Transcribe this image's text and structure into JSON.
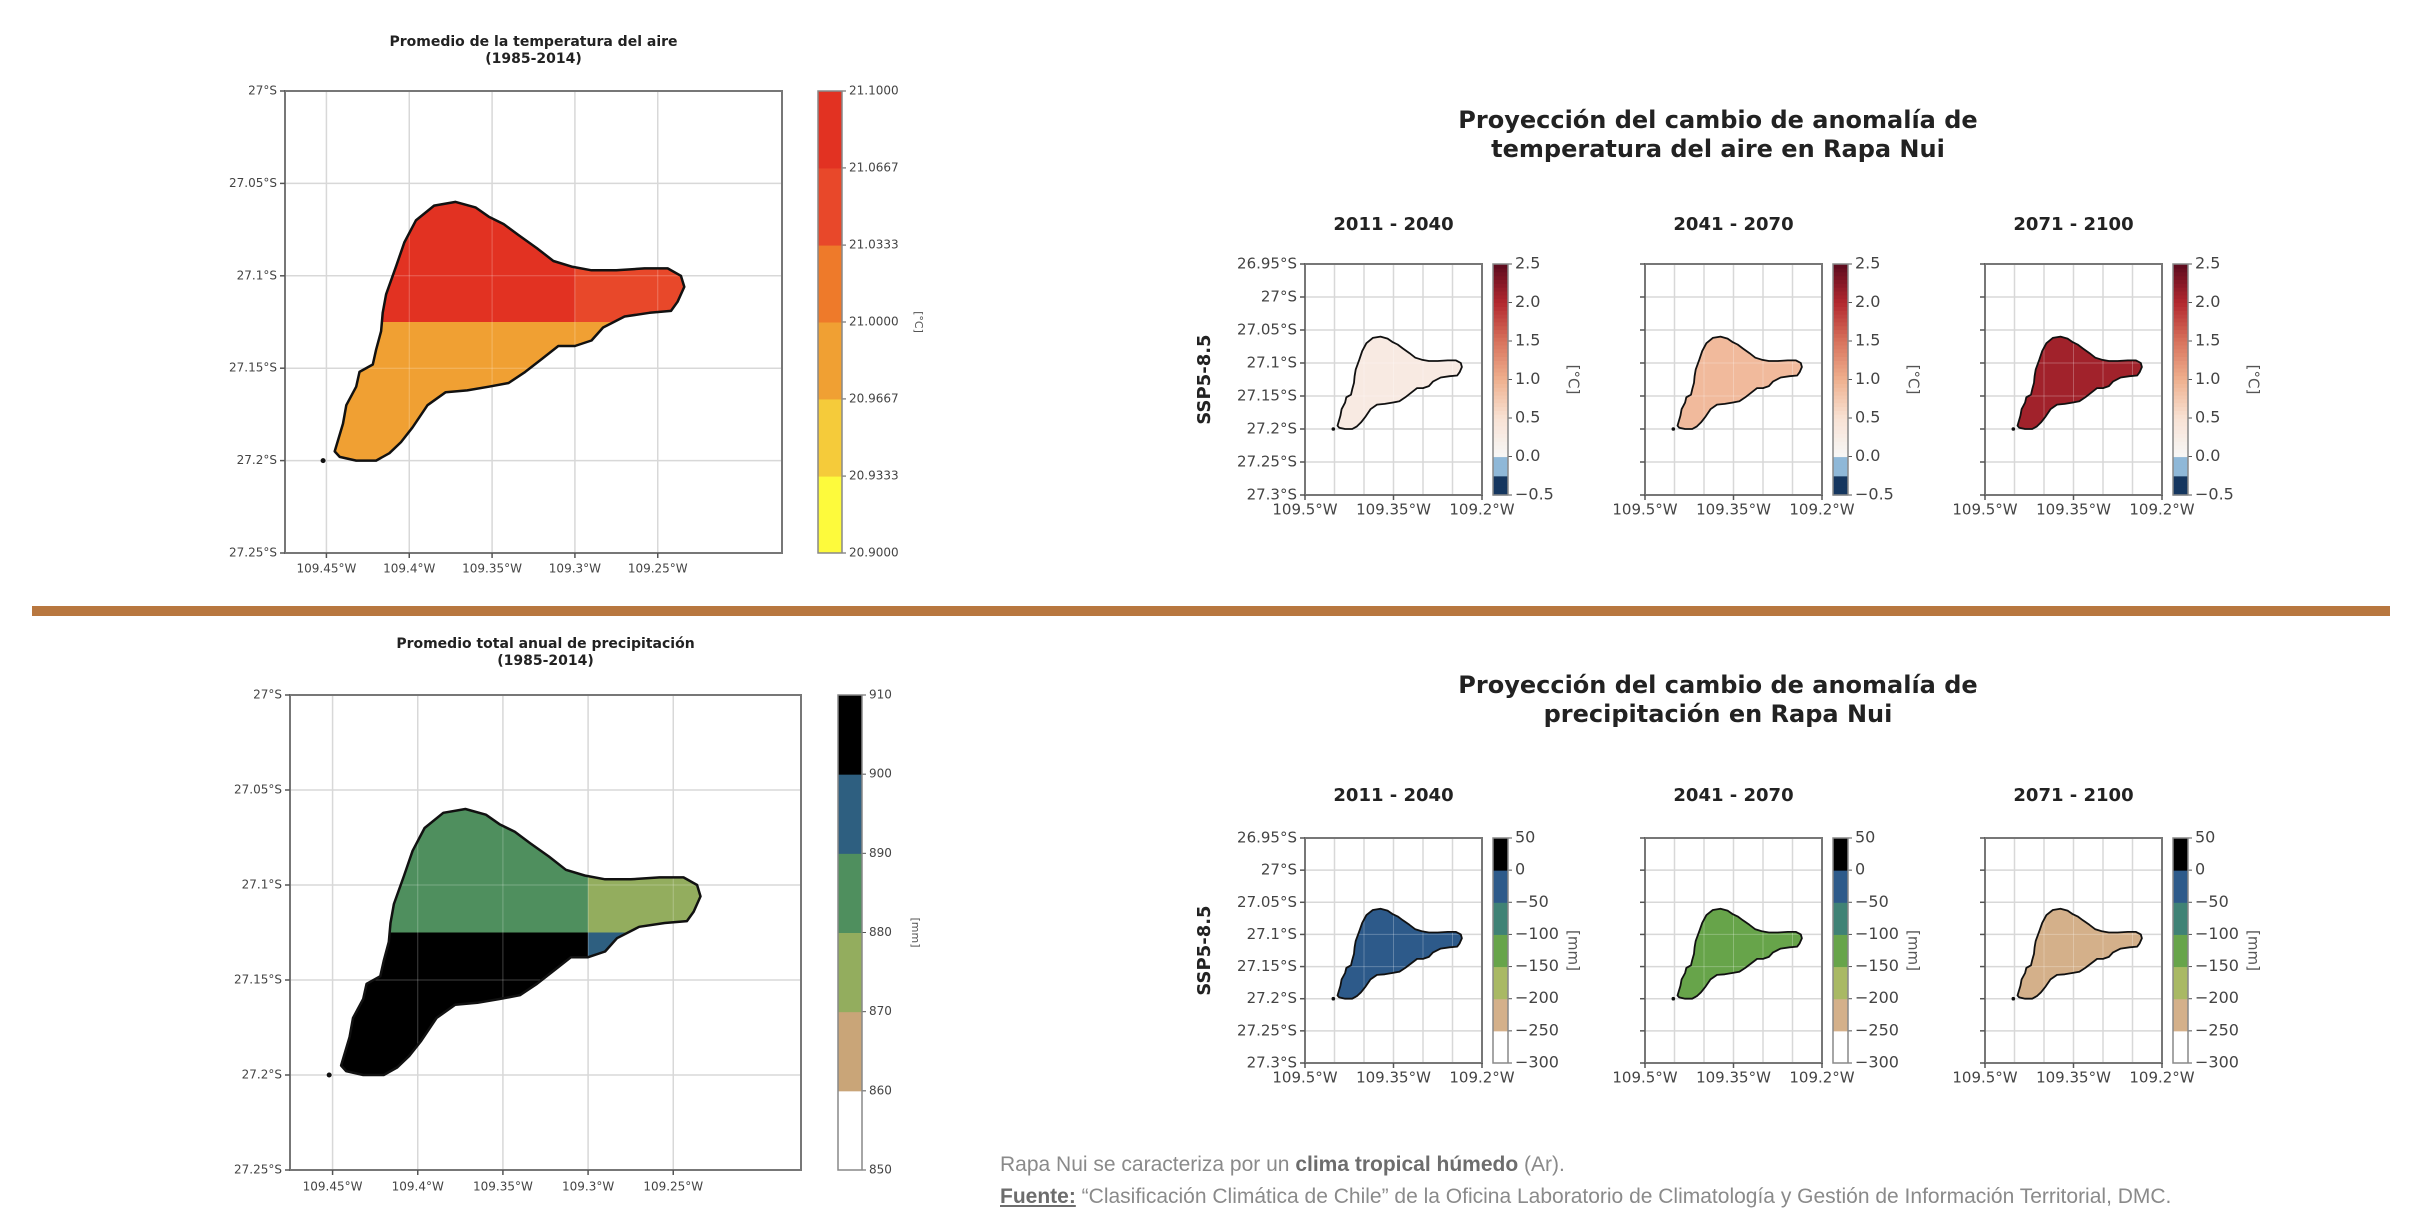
{
  "caption": {
    "line1_prefix": "Rapa Nui se caracteriza por un ",
    "line1_bold": "clima tropical húmedo",
    "line1_suffix": " (Ar).",
    "line2_label": "Fuente:",
    "line2_text": " “Clasificación Climática de Chile” de la Oficina Laboratorio de Climatología y Gestión de Información Territorial, DMC."
  },
  "section_titles": {
    "temp_projection": [
      "Proyección del cambio de anomalía de",
      "temperatura del aire en Rapa Nui"
    ],
    "precip_projection": [
      "Proyección del cambio de anomalía de",
      "precipitación en Rapa Nui"
    ]
  },
  "divider_color": "#b8773f",
  "chart_data": [
    {
      "id": "temp-hist",
      "type": "heatmap",
      "title": [
        "Promedio de la temperatura del aire",
        "(1985-2014)"
      ],
      "xlabel": "",
      "ylabel": "",
      "xlim": [
        109.475,
        109.175
      ],
      "ylim": [
        27.25,
        27.0
      ],
      "xticks": [
        109.45,
        109.4,
        109.35,
        109.3,
        109.25
      ],
      "xtick_labels": [
        "109.45°W",
        "109.4°W",
        "109.35°W",
        "109.3°W",
        "109.25°W"
      ],
      "yticks": [
        27.0,
        27.05,
        27.1,
        27.15,
        27.2,
        27.25
      ],
      "ytick_labels": [
        "27°S",
        "27.05°S",
        "27.1°S",
        "27.15°S",
        "27.2°S",
        "27.25°S"
      ],
      "grid": true,
      "colorbar": {
        "label": "[°C]",
        "bounds": [
          20.9,
          20.9333,
          20.9667,
          21.0,
          21.0333,
          21.0667,
          21.1
        ],
        "tick_labels": [
          "20.9000",
          "20.9333",
          "20.9667",
          "21.0000",
          "21.0333",
          "21.0667",
          "21.1000"
        ],
        "colors": [
          "#fdfa3c",
          "#f5cb3a",
          "#f0a033",
          "#ee7a2a",
          "#e8482a",
          "#e23222"
        ]
      },
      "cells": [
        {
          "region": "north-west",
          "value": 21.08
        },
        {
          "region": "north-east",
          "value": 21.05
        },
        {
          "region": "south",
          "value": 20.98
        }
      ]
    },
    {
      "id": "precip-hist",
      "type": "heatmap",
      "title": [
        "Promedio total anual de precipitación",
        "(1985-2014)"
      ],
      "xlabel": "",
      "ylabel": "",
      "xlim": [
        109.475,
        109.175
      ],
      "ylim": [
        27.25,
        27.0
      ],
      "xticks": [
        109.45,
        109.4,
        109.35,
        109.3,
        109.25
      ],
      "xtick_labels": [
        "109.45°W",
        "109.4°W",
        "109.35°W",
        "109.3°W",
        "109.25°W"
      ],
      "yticks": [
        27.0,
        27.05,
        27.1,
        27.15,
        27.2,
        27.25
      ],
      "ytick_labels": [
        "27°S",
        "27.05°S",
        "27.1°S",
        "27.15°S",
        "27.2°S",
        "27.25°S"
      ],
      "grid": true,
      "colorbar": {
        "label": "[mm]",
        "bounds": [
          850,
          860,
          870,
          880,
          890,
          900,
          910
        ],
        "tick_labels": [
          "850",
          "860",
          "870",
          "880",
          "890",
          "900",
          "910"
        ],
        "colors": [
          "#ffffff",
          "#c9a578",
          "#93ad5e",
          "#4f8f5e",
          "#2e5f80",
          "#000000"
        ]
      },
      "cells": [
        {
          "region": "north-west",
          "value": 885
        },
        {
          "region": "north-east",
          "value": 875
        },
        {
          "region": "south-west",
          "value": 905
        },
        {
          "region": "south-east",
          "value": 895
        }
      ]
    },
    {
      "id": "temp-proj",
      "type": "heatmap",
      "row_label": "SSP5-8.5",
      "panels": [
        {
          "title": "2011 - 2040",
          "value": 0.3
        },
        {
          "title": "2041 - 2070",
          "value": 0.9
        },
        {
          "title": "2071 - 2100",
          "value": 2.1
        }
      ],
      "xlim": [
        109.5,
        109.2
      ],
      "ylim": [
        27.3,
        26.95
      ],
      "xticks": [
        109.5,
        109.35,
        109.2
      ],
      "xtick_labels": [
        "109.5°W",
        "109.35°W",
        "109.2°W"
      ],
      "yticks": [
        26.95,
        27.0,
        27.05,
        27.1,
        27.15,
        27.2,
        27.25,
        27.3
      ],
      "ytick_labels": [
        "26.95°S",
        "27°S",
        "27.05°S",
        "27.1°S",
        "27.15°S",
        "27.2°S",
        "27.25°S",
        "27.3°S"
      ],
      "grid": true,
      "colorbar": {
        "label": "[°C]",
        "range": [
          -0.5,
          2.5
        ],
        "ticks": [
          -0.5,
          0.0,
          0.5,
          1.0,
          1.5,
          2.0,
          2.5
        ],
        "tick_labels": [
          "−0.5",
          "0.0",
          "0.5",
          "1.0",
          "1.5",
          "2.0",
          "2.5"
        ],
        "stops": [
          {
            "v": -0.5,
            "c": "#15365f"
          },
          {
            "v": -0.25,
            "c": "#15365f"
          },
          {
            "v": -0.25,
            "c": "#8fb8d8"
          },
          {
            "v": 0.0,
            "c": "#8fb8d8"
          },
          {
            "v": 0.0,
            "c": "#f7f7f7"
          },
          {
            "v": 0.5,
            "c": "#f8e2d4"
          },
          {
            "v": 1.0,
            "c": "#efb08e"
          },
          {
            "v": 1.5,
            "c": "#d8735c"
          },
          {
            "v": 2.0,
            "c": "#b2282f"
          },
          {
            "v": 2.5,
            "c": "#5c0a1d"
          }
        ]
      }
    },
    {
      "id": "precip-proj",
      "type": "heatmap",
      "row_label": "SSP5-8.5",
      "panels": [
        {
          "title": "2011 - 2040",
          "value": -25
        },
        {
          "title": "2041 - 2070",
          "value": -125
        },
        {
          "title": "2071 - 2100",
          "value": -225
        }
      ],
      "xlim": [
        109.5,
        109.2
      ],
      "ylim": [
        27.3,
        26.95
      ],
      "xticks": [
        109.5,
        109.35,
        109.2
      ],
      "xtick_labels": [
        "109.5°W",
        "109.35°W",
        "109.2°W"
      ],
      "yticks": [
        26.95,
        27.0,
        27.05,
        27.1,
        27.15,
        27.2,
        27.25,
        27.3
      ],
      "ytick_labels": [
        "26.95°S",
        "27°S",
        "27.05°S",
        "27.1°S",
        "27.15°S",
        "27.2°S",
        "27.25°S",
        "27.3°S"
      ],
      "grid": true,
      "colorbar": {
        "label": "[mm]",
        "bounds": [
          -300,
          -250,
          -200,
          -150,
          -100,
          -50,
          0,
          50
        ],
        "tick_labels": [
          "−300",
          "−250",
          "−200",
          "−150",
          "−100",
          "−50",
          "0",
          "50"
        ],
        "colors": [
          "#ffffff",
          "#d4b08a",
          "#a9b964",
          "#67a44a",
          "#3f8275",
          "#2d5a8a",
          "#000000"
        ]
      }
    }
  ]
}
